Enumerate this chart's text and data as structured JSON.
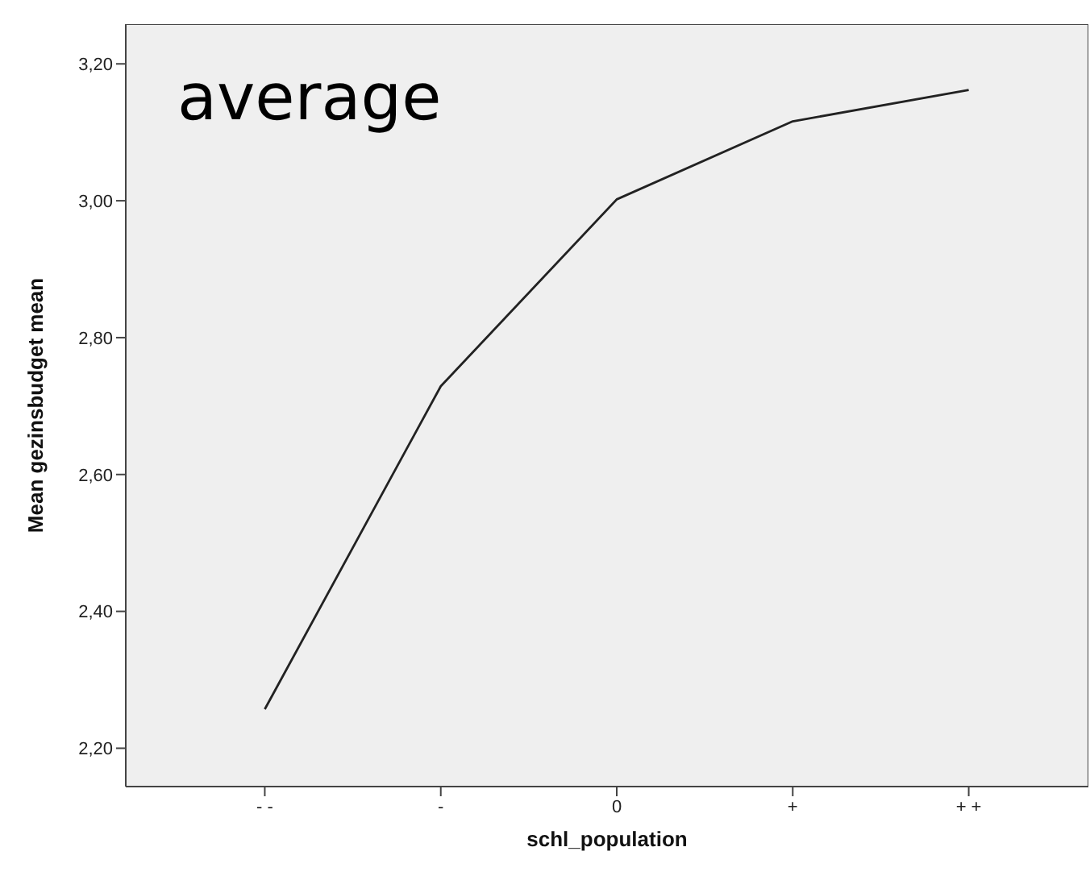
{
  "chart_data": {
    "type": "line",
    "xlabel": "schl_population",
    "ylabel": "Mean gezinsbudget mean",
    "annotations": [
      "average"
    ],
    "categories": [
      "- -",
      "-",
      "0",
      "+",
      "+ +"
    ],
    "series": [
      {
        "color": "#222222",
        "values": [
          2.257,
          2.729,
          3.002,
          3.116,
          3.162
        ]
      }
    ],
    "ylim": [
      2.144,
      3.258
    ],
    "yticks": [
      {
        "value": 2.2,
        "label": "2,20"
      },
      {
        "value": 2.4,
        "label": "2,40"
      },
      {
        "value": 2.6,
        "label": "2,60"
      },
      {
        "value": 2.8,
        "label": "2,80"
      },
      {
        "value": 3.0,
        "label": "3,00"
      },
      {
        "value": 3.2,
        "label": "3,20"
      }
    ],
    "grid": false,
    "legend": false,
    "marker": "none",
    "line_style": "solid"
  }
}
